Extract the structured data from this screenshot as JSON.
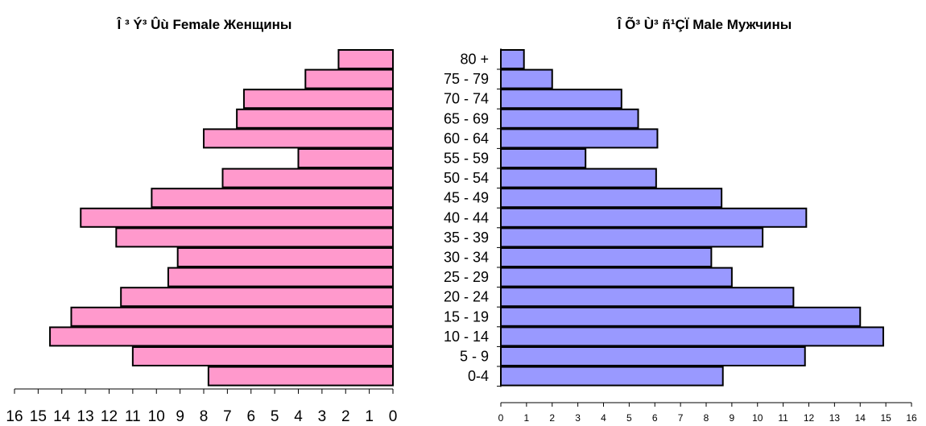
{
  "chart_data": [
    {
      "type": "bar",
      "orientation": "horizontal",
      "direction": "right-to-left",
      "title": "Î ³ Ý³ Ûù Female  Женщины",
      "categories": [
        "0-4",
        "5 - 9",
        "10 - 14",
        "15 - 19",
        "20 - 24",
        "25 - 29",
        "30 - 34",
        "35 - 39",
        "40 - 44",
        "45 - 49",
        "50 - 54",
        "55 - 59",
        "60 - 64",
        "65 - 69",
        "70 - 74",
        "75 - 79",
        "80 +"
      ],
      "values": [
        7.8,
        11.0,
        14.5,
        13.6,
        11.5,
        9.5,
        9.1,
        11.7,
        13.2,
        10.2,
        7.2,
        4.0,
        8.0,
        6.6,
        6.3,
        3.7,
        2.3
      ],
      "xlim": [
        0,
        16
      ],
      "x_ticks": [
        "0",
        "1",
        "2",
        "3",
        "4",
        "5",
        "6",
        "7",
        "8",
        "9",
        "10",
        "11",
        "12",
        "13",
        "14",
        "15",
        "16"
      ],
      "color": "#ff99cc",
      "grid": false
    },
    {
      "type": "bar",
      "orientation": "horizontal",
      "direction": "left-to-right",
      "title": "Î Õ³ Ù³ ñ¹ÇÏ  Male  Мужчины",
      "categories": [
        "0-4",
        "5 - 9",
        "10 - 14",
        "15 - 19",
        "20 - 24",
        "25 - 29",
        "30 - 34",
        "35 - 39",
        "40 - 44",
        "45 - 49",
        "50 - 54",
        "55 - 59",
        "60 - 64",
        "65 - 69",
        "70 - 74",
        "75 - 79",
        "80 +"
      ],
      "values": [
        8.65,
        11.85,
        14.9,
        14.0,
        11.4,
        9.0,
        8.2,
        10.2,
        11.9,
        8.6,
        6.05,
        3.3,
        6.1,
        5.35,
        4.7,
        2.0,
        0.9
      ],
      "xlim": [
        0,
        16
      ],
      "x_ticks": [
        "0",
        "1",
        "2",
        "3",
        "4",
        "5",
        "6",
        "7",
        "8",
        "9",
        "10",
        "11",
        "12",
        "13",
        "14",
        "15",
        "16"
      ],
      "color": "#9999ff",
      "grid": false
    }
  ]
}
